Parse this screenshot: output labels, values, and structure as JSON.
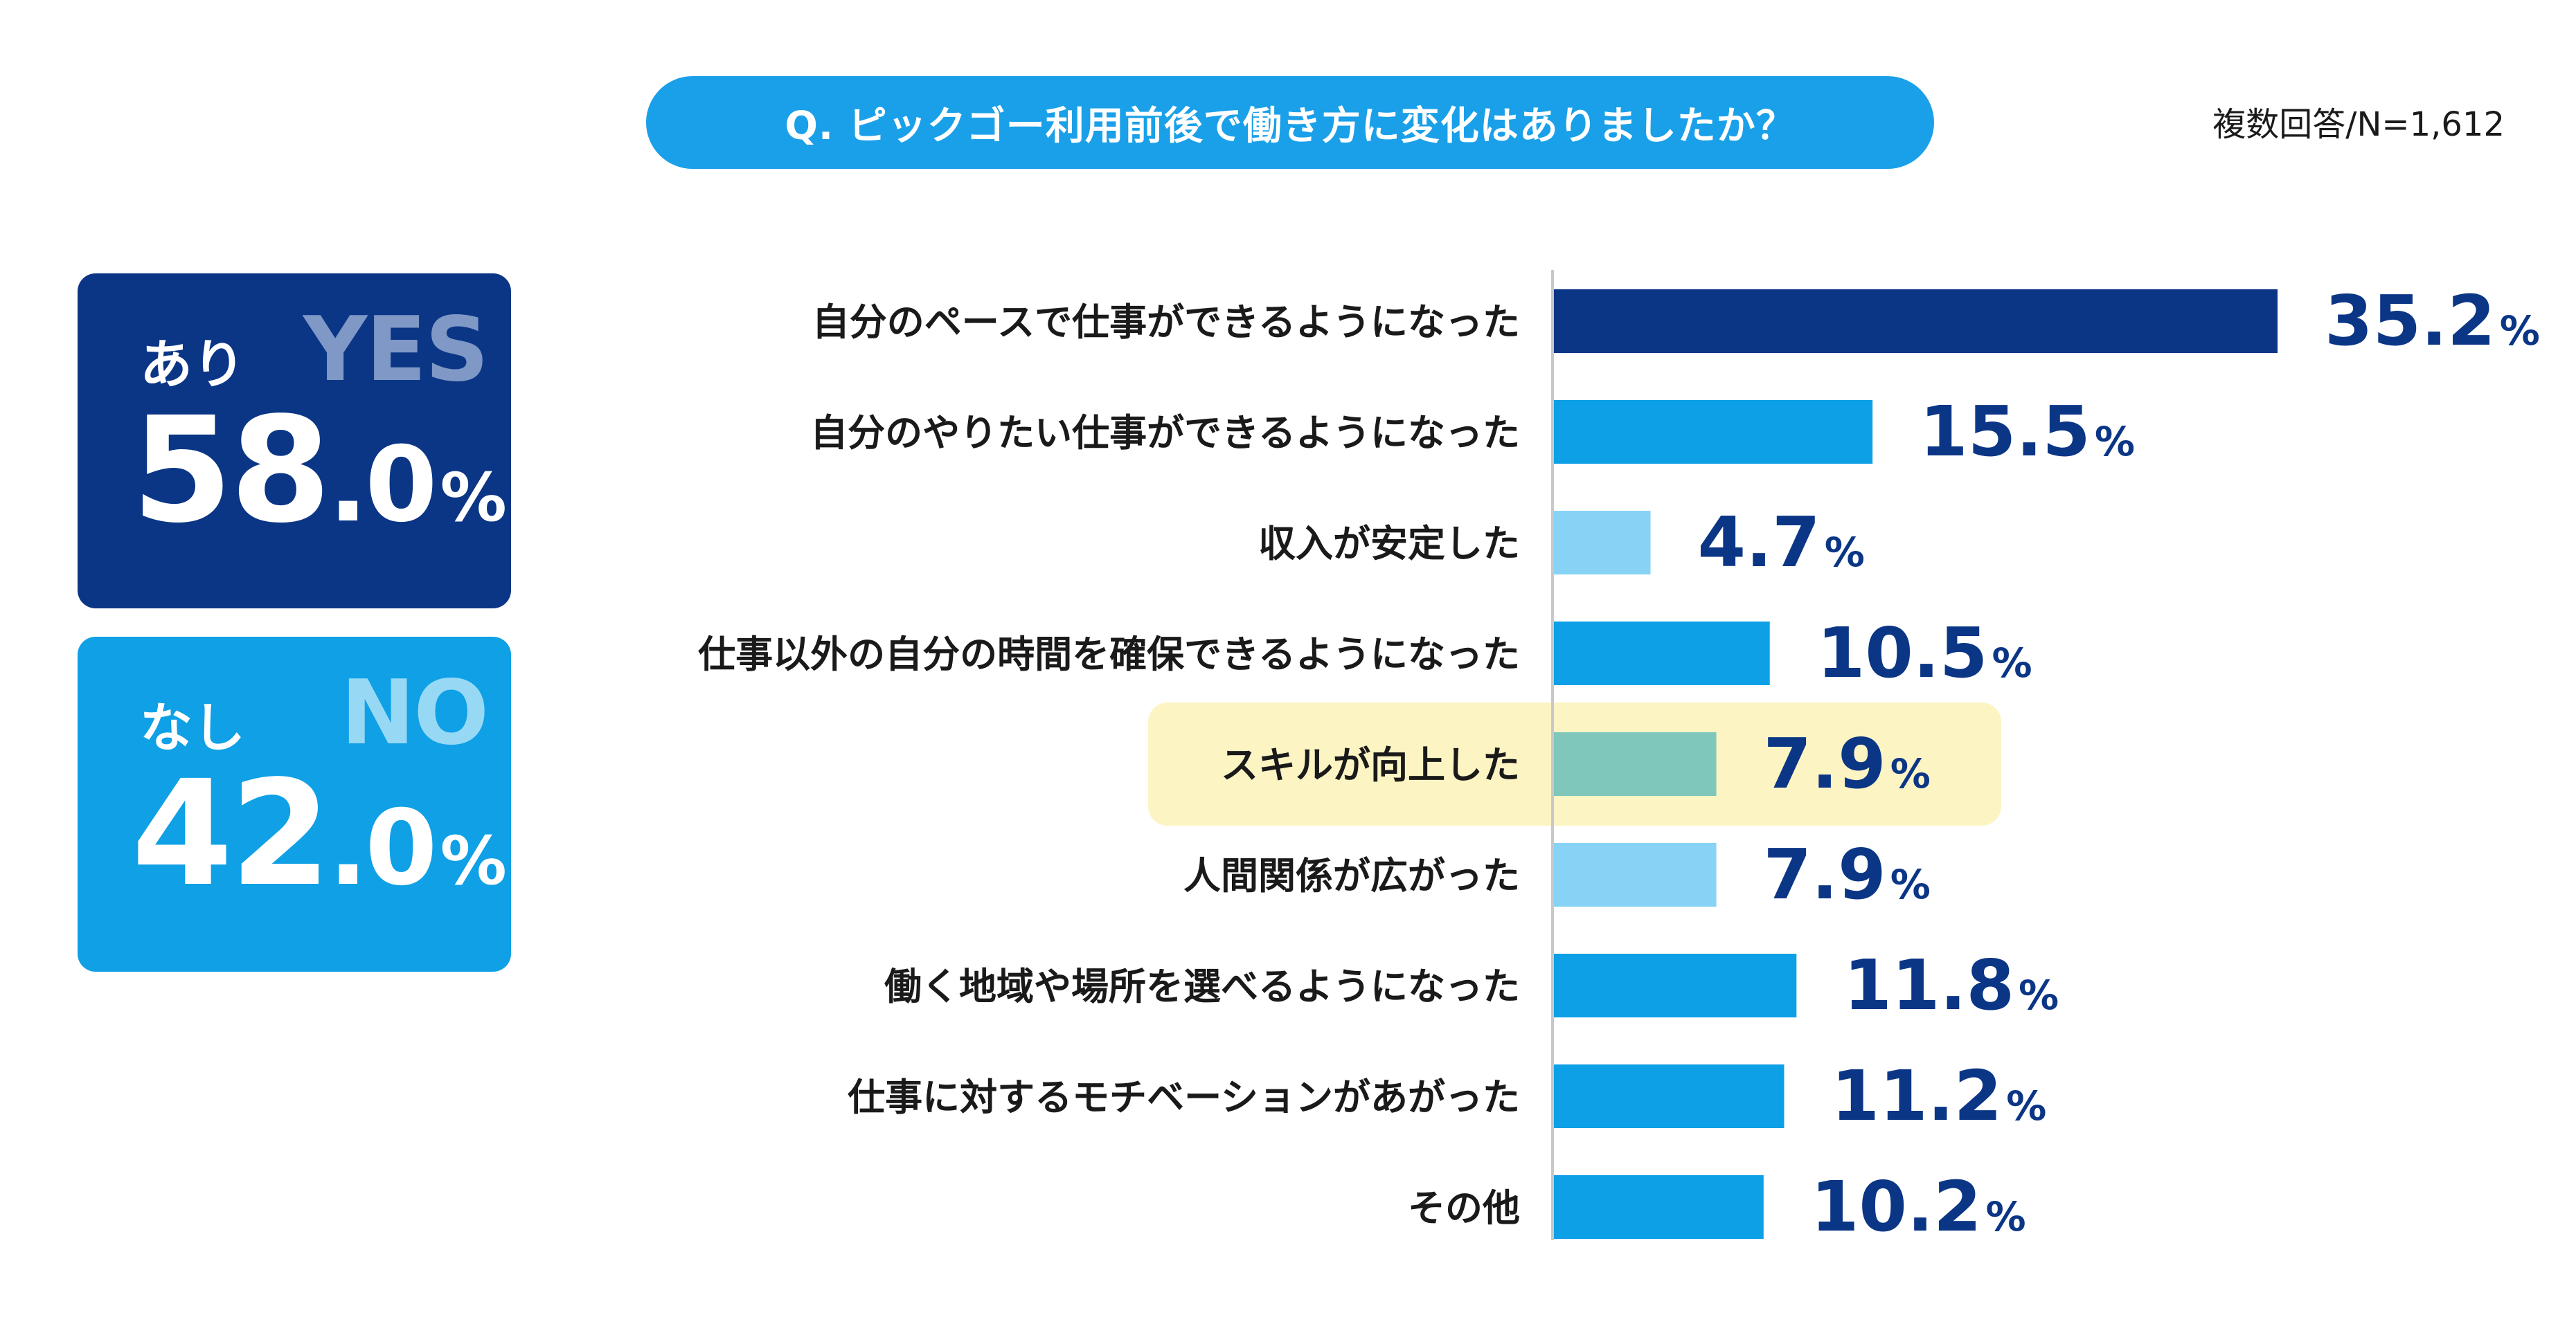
{
  "question": "Q. ピックゴー利用前後で働き方に変化はありましたか？",
  "sample_note": "複数回答/N=1,612",
  "summary": {
    "yes": {
      "jp_label": "あり",
      "en_label": "YES",
      "value_int": "58",
      "value_dec": ".0",
      "unit": "%",
      "value": 58.0
    },
    "no": {
      "jp_label": "なし",
      "en_label": "NO",
      "value_int": "42",
      "value_dec": ".0",
      "unit": "%",
      "value": 42.0
    }
  },
  "colors": {
    "dark_navy": "#0b3686",
    "bright_blue": "#0ea0e6",
    "light_blue": "#87d3f6",
    "teal": "#7fc7ba",
    "highlight_bg": "#fdf4c4",
    "value_text": "#0b3686"
  },
  "chart_data": {
    "type": "bar",
    "orientation": "horizontal",
    "unit": "%",
    "categories": [
      "自分のペースで仕事ができるようになった",
      "自分のやりたい仕事ができるようになった",
      "収入が安定した",
      "仕事以外の自分の時間を確保できるようになった",
      "スキルが向上した",
      "人間関係が広がった",
      "働く地域や場所を選べるようになった",
      "仕事に対するモチベーションがあがった",
      "その他"
    ],
    "values": [
      35.2,
      15.5,
      4.7,
      10.5,
      7.9,
      7.9,
      11.8,
      11.2,
      10.2
    ],
    "value_labels": [
      "35.2",
      "15.5",
      "4.7",
      "10.5",
      "7.9",
      "7.9",
      "11.8",
      "11.2",
      "10.2"
    ],
    "bar_colors": [
      "#0b3686",
      "#0ea0e6",
      "#87d3f6",
      "#0ea0e6",
      "#7fc7ba",
      "#87d3f6",
      "#0ea0e6",
      "#0ea0e6",
      "#0ea0e6"
    ],
    "highlighted_category": "スキルが向上した",
    "xlim": [
      0,
      35.2
    ]
  }
}
